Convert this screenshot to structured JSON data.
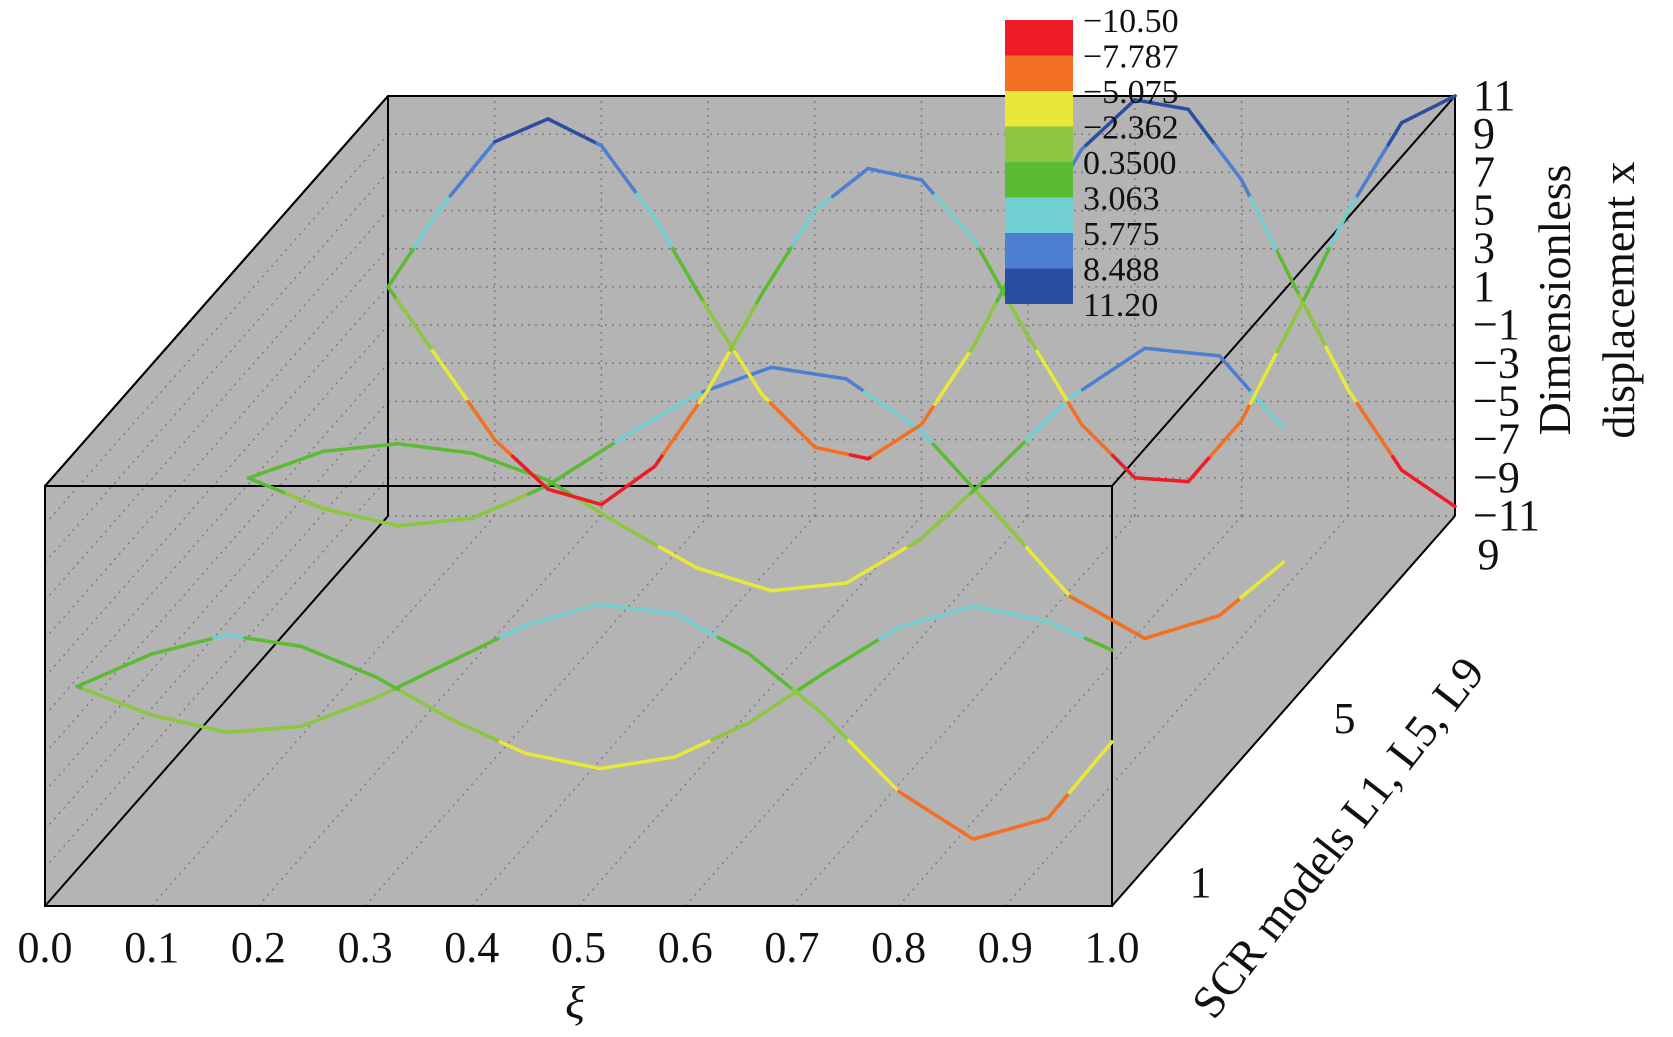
{
  "chart_data": {
    "type": "line3d",
    "xlabel": "ξ",
    "ylabel": "SCR models L1, L5, L9",
    "zlabel_line1": "Dimensionless",
    "zlabel_line2": "displacement x",
    "xlim": [
      0,
      1
    ],
    "zlim": [
      -11,
      11
    ],
    "x_ticks": [
      "0.0",
      "0.1",
      "0.2",
      "0.3",
      "0.4",
      "0.5",
      "0.6",
      "0.7",
      "0.8",
      "0.9",
      "1.0"
    ],
    "y_ticks": [
      "1",
      "5",
      "9"
    ],
    "z_ticks": [
      "11",
      "9",
      "7",
      "5",
      "3",
      "1",
      "−1",
      "−3",
      "−5",
      "−7",
      "−9",
      "−11"
    ],
    "series": [
      {
        "model": "L1",
        "depth": 0,
        "curves": [
          {
            "x": [
              0.03,
              0.1,
              0.17,
              0.24,
              0.31,
              0.38,
              0.45,
              0.52,
              0.59,
              0.66,
              0.73,
              0.8,
              0.87,
              0.94,
              1.0
            ],
            "z": [
              0.5,
              2.2,
              3.2,
              2.6,
              1.0,
              -1.2,
              -3.0,
              -3.8,
              -3.2,
              -1.4,
              1.2,
              3.6,
              4.7,
              3.9,
              2.4
            ]
          },
          {
            "x": [
              0.03,
              0.1,
              0.17,
              0.24,
              0.31,
              0.38,
              0.45,
              0.52,
              0.59,
              0.66,
              0.73,
              0.8,
              0.87,
              0.94,
              1.0
            ],
            "z": [
              0.5,
              -1.0,
              -1.9,
              -1.6,
              -0.1,
              1.8,
              3.7,
              4.8,
              4.3,
              2.2,
              -1.0,
              -5.0,
              -7.5,
              -6.4,
              -2.4
            ]
          }
        ]
      },
      {
        "model": "L5",
        "depth": 0.5,
        "curves": [
          {
            "x": [
              0.03,
              0.1,
              0.17,
              0.24,
              0.31,
              0.38,
              0.45,
              0.52,
              0.59,
              0.66,
              0.73,
              0.8,
              0.87,
              0.94,
              1.0
            ],
            "z": [
              1.2,
              2.6,
              3.0,
              2.5,
              1.1,
              -1.3,
              -3.5,
              -4.7,
              -4.3,
              -2.0,
              1.6,
              5.4,
              8.0,
              7.6,
              3.8
            ]
          },
          {
            "x": [
              0.03,
              0.1,
              0.17,
              0.24,
              0.31,
              0.38,
              0.45,
              0.52,
              0.59,
              0.66,
              0.73,
              0.8,
              0.87,
              0.94,
              1.0
            ],
            "z": [
              1.2,
              -0.4,
              -1.3,
              -0.9,
              0.8,
              3.3,
              5.6,
              7.0,
              6.4,
              3.7,
              -0.6,
              -5.0,
              -7.2,
              -6.0,
              -3.2
            ]
          }
        ]
      },
      {
        "model": "L9",
        "depth": 1,
        "curves": [
          {
            "x": [
              0.0,
              0.05,
              0.1,
              0.15,
              0.2,
              0.25,
              0.3,
              0.35,
              0.4,
              0.45,
              0.5,
              0.55,
              0.6,
              0.65,
              0.7,
              0.75,
              0.8,
              0.85,
              0.9,
              0.95,
              1.0
            ],
            "z": [
              1.0,
              5.2,
              8.6,
              9.8,
              8.4,
              4.6,
              -0.2,
              -4.6,
              -7.4,
              -8.0,
              -6.2,
              -2.0,
              3.4,
              8.2,
              10.8,
              10.3,
              6.6,
              1.0,
              -4.4,
              -8.6,
              -10.5
            ]
          },
          {
            "x": [
              0.0,
              0.05,
              0.1,
              0.15,
              0.2,
              0.25,
              0.3,
              0.35,
              0.4,
              0.45,
              0.5,
              0.55,
              0.6,
              0.65,
              0.7,
              0.75,
              0.8,
              0.85,
              0.9,
              0.95,
              1.0
            ],
            "z": [
              1.0,
              -3.0,
              -7.0,
              -9.6,
              -10.4,
              -8.4,
              -4.4,
              0.6,
              5.0,
              7.2,
              6.6,
              3.4,
              -1.6,
              -6.2,
              -9.0,
              -9.2,
              -6.0,
              -0.6,
              5.0,
              9.6,
              11.0
            ]
          }
        ]
      }
    ],
    "legend": {
      "placement": "top",
      "levels": [
        "−10.50",
        "−7.787",
        "−5.075",
        "−2.362",
        "0.3500",
        "3.063",
        "5.775",
        "8.488",
        "11.20"
      ],
      "colors": [
        "#ee1c25",
        "#f36f21",
        "#e8e83a",
        "#8dc63f",
        "#5bbb33",
        "#6fcfd1",
        "#4c7fcf",
        "#2b4ea2"
      ]
    },
    "pane_color": "#b4b4b4",
    "grid": true
  }
}
